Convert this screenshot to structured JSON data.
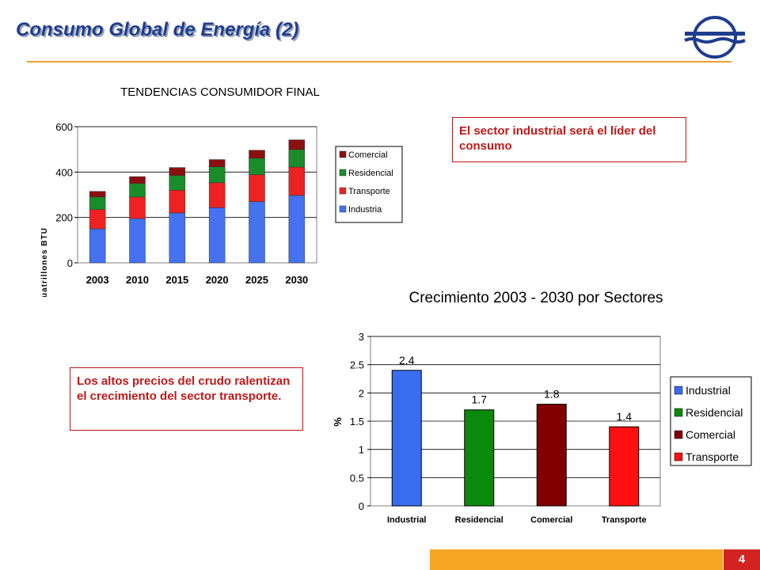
{
  "header": {
    "title": "Consumo Global de Energía (2)"
  },
  "callouts": {
    "industrial": "El sector industrial será el líder del consumo",
    "transport": "Los altos precios del crudo ralentizan el crecimiento del sector transporte."
  },
  "footer": {
    "page_number": "4"
  },
  "colors": {
    "accent_line": "#f0a030",
    "footer_bar": "#f5a623",
    "footer_number_bg": "#d22323",
    "title": "#1f3c8f",
    "callout": "#c01818"
  },
  "chart_data": [
    {
      "type": "bar",
      "stacked": true,
      "title": "TENDENCIAS CONSUMIDOR FINAL",
      "xlabel": "",
      "ylabel": "Quatrillones BTU",
      "categories": [
        "2003",
        "2010",
        "2015",
        "2020",
        "2025",
        "2030"
      ],
      "ylim": [
        0,
        600
      ],
      "yticks": [
        0,
        200,
        400,
        600
      ],
      "grid": true,
      "legend_position": "right",
      "series": [
        {
          "name": "Industria",
          "color": "#4472f0",
          "values": [
            150,
            195,
            220,
            243,
            270,
            297
          ]
        },
        {
          "name": "Transporte",
          "color": "#ee2222",
          "values": [
            85,
            95,
            100,
            110,
            118,
            125
          ]
        },
        {
          "name": "Residencial",
          "color": "#1a8c2a",
          "values": [
            55,
            60,
            65,
            70,
            73,
            77
          ]
        },
        {
          "name": "Comercial",
          "color": "#8b1010",
          "values": [
            25,
            30,
            35,
            32,
            35,
            43
          ]
        }
      ]
    },
    {
      "type": "bar",
      "title": "Crecimiento 2003 - 2030 por Sectores",
      "xlabel": "",
      "ylabel": "%",
      "categories": [
        "Industrial",
        "Residencial",
        "Comercial",
        "Transporte"
      ],
      "values": [
        2.4,
        1.7,
        1.8,
        1.4
      ],
      "data_labels": [
        "2.4",
        "1.7",
        "1.8",
        "1.4"
      ],
      "colors": [
        "#3a6cf0",
        "#0a8a0a",
        "#800000",
        "#ff1010"
      ],
      "ylim": [
        0,
        3
      ],
      "yticks": [
        "0",
        "0.5",
        "1",
        "1.5",
        "2",
        "2.5",
        "3"
      ],
      "grid": true,
      "legend_position": "right",
      "legend": [
        {
          "name": "Industrial",
          "color": "#3a6cf0"
        },
        {
          "name": "Residencial",
          "color": "#0a8a0a"
        },
        {
          "name": "Comercial",
          "color": "#800000"
        },
        {
          "name": "Transporte",
          "color": "#ff1010"
        }
      ]
    }
  ]
}
